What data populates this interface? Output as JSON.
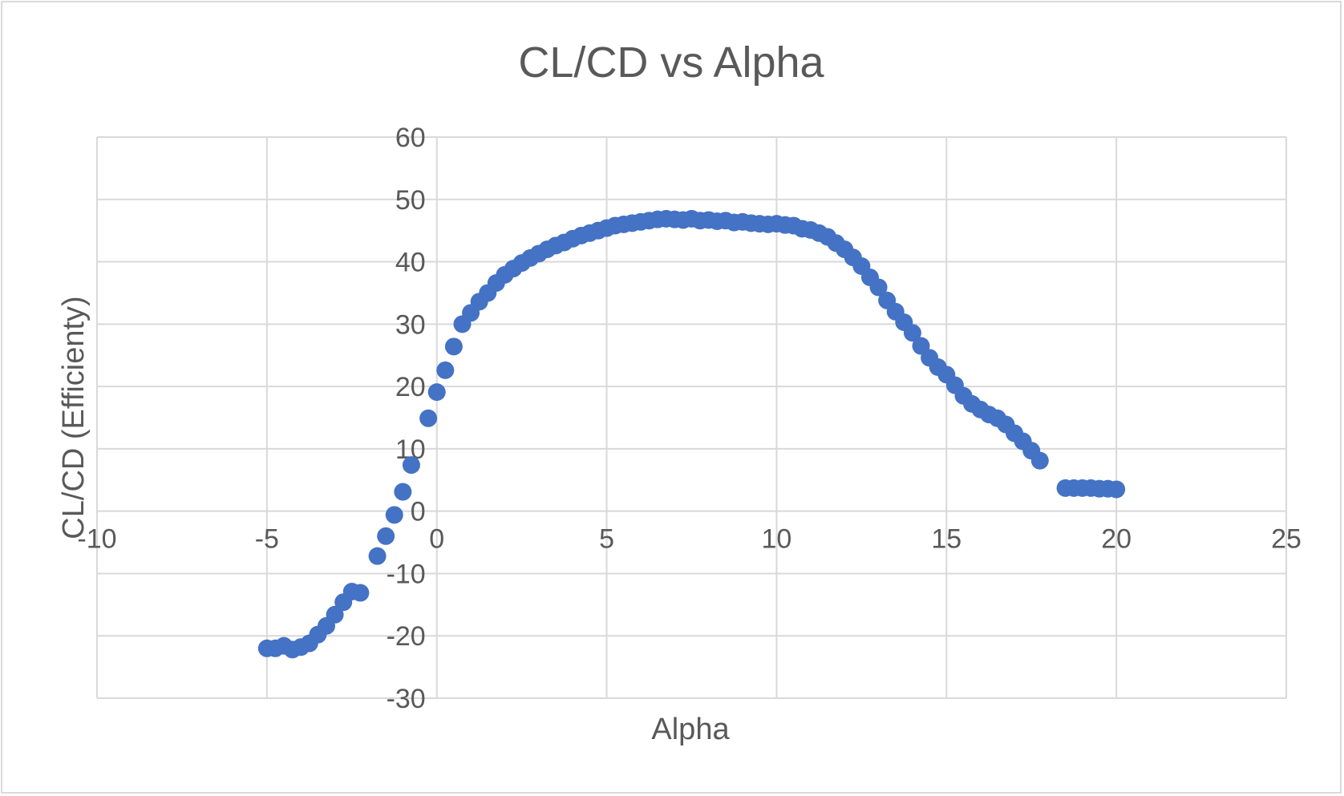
{
  "chart_data": {
    "type": "scatter",
    "title": "CL/CD vs Alpha",
    "xlabel": "Alpha",
    "ylabel": "CL/CD (Efficienty)",
    "xlim": [
      -10,
      25
    ],
    "ylim": [
      -30,
      60
    ],
    "xticks": [
      -10,
      -5,
      0,
      5,
      10,
      15,
      20,
      25
    ],
    "yticks": [
      -30,
      -20,
      -10,
      0,
      10,
      20,
      30,
      40,
      50,
      60
    ],
    "grid": true,
    "legend": "none",
    "marker_color": "#4472c4",
    "series": [
      {
        "points": [
          [
            -5.0,
            -22.0
          ],
          [
            -4.75,
            -22.0
          ],
          [
            -4.5,
            -21.6
          ],
          [
            -4.25,
            -22.2
          ],
          [
            -4.0,
            -21.8
          ],
          [
            -3.75,
            -21.2
          ],
          [
            -3.5,
            -19.8
          ],
          [
            -3.25,
            -18.4
          ],
          [
            -3.0,
            -16.6
          ],
          [
            -2.75,
            -14.6
          ],
          [
            -2.5,
            -12.9
          ],
          [
            -2.25,
            -13.1
          ],
          [
            -1.75,
            -7.2
          ],
          [
            -1.5,
            -4.0
          ],
          [
            -1.25,
            -0.6
          ],
          [
            -1.0,
            3.1
          ],
          [
            -0.75,
            7.4
          ],
          [
            -0.25,
            14.9
          ],
          [
            0.0,
            19.1
          ],
          [
            0.25,
            22.6
          ],
          [
            0.5,
            26.4
          ],
          [
            0.75,
            30.0
          ],
          [
            1.0,
            31.8
          ],
          [
            1.25,
            33.6
          ],
          [
            1.5,
            35.0
          ],
          [
            1.75,
            36.6
          ],
          [
            2.0,
            37.9
          ],
          [
            2.25,
            38.9
          ],
          [
            2.5,
            39.8
          ],
          [
            2.75,
            40.6
          ],
          [
            3.0,
            41.3
          ],
          [
            3.25,
            42.0
          ],
          [
            3.5,
            42.6
          ],
          [
            3.75,
            43.1
          ],
          [
            4.0,
            43.7
          ],
          [
            4.25,
            44.2
          ],
          [
            4.5,
            44.6
          ],
          [
            4.75,
            45.0
          ],
          [
            5.0,
            45.4
          ],
          [
            5.25,
            45.8
          ],
          [
            5.5,
            46.0
          ],
          [
            5.75,
            46.2
          ],
          [
            6.0,
            46.4
          ],
          [
            6.25,
            46.6
          ],
          [
            6.5,
            46.8
          ],
          [
            6.75,
            46.9
          ],
          [
            7.0,
            46.8
          ],
          [
            7.25,
            46.7
          ],
          [
            7.5,
            46.9
          ],
          [
            7.75,
            46.6
          ],
          [
            8.0,
            46.7
          ],
          [
            8.25,
            46.5
          ],
          [
            8.5,
            46.6
          ],
          [
            8.75,
            46.3
          ],
          [
            9.0,
            46.4
          ],
          [
            9.25,
            46.2
          ],
          [
            9.5,
            46.1
          ],
          [
            9.75,
            46.0
          ],
          [
            10.0,
            46.1
          ],
          [
            10.25,
            45.9
          ],
          [
            10.5,
            45.8
          ],
          [
            10.75,
            45.3
          ],
          [
            11.0,
            45.1
          ],
          [
            11.25,
            44.6
          ],
          [
            11.5,
            44.0
          ],
          [
            11.75,
            43.0
          ],
          [
            12.0,
            42.0
          ],
          [
            12.25,
            40.7
          ],
          [
            12.5,
            39.3
          ],
          [
            12.75,
            37.5
          ],
          [
            13.0,
            35.9
          ],
          [
            13.25,
            33.8
          ],
          [
            13.5,
            32.0
          ],
          [
            13.75,
            30.3
          ],
          [
            14.0,
            28.6
          ],
          [
            14.25,
            26.5
          ],
          [
            14.5,
            24.6
          ],
          [
            14.75,
            23.1
          ],
          [
            15.0,
            21.9
          ],
          [
            15.25,
            20.2
          ],
          [
            15.5,
            18.5
          ],
          [
            15.75,
            17.2
          ],
          [
            16.0,
            16.3
          ],
          [
            16.25,
            15.5
          ],
          [
            16.5,
            14.9
          ],
          [
            16.75,
            13.9
          ],
          [
            17.0,
            12.5
          ],
          [
            17.25,
            11.2
          ],
          [
            17.5,
            9.7
          ],
          [
            17.75,
            8.1
          ],
          [
            18.5,
            3.7
          ],
          [
            18.75,
            3.7
          ],
          [
            19.0,
            3.7
          ],
          [
            19.25,
            3.7
          ],
          [
            19.5,
            3.6
          ],
          [
            19.75,
            3.6
          ],
          [
            20.0,
            3.5
          ]
        ]
      }
    ]
  }
}
